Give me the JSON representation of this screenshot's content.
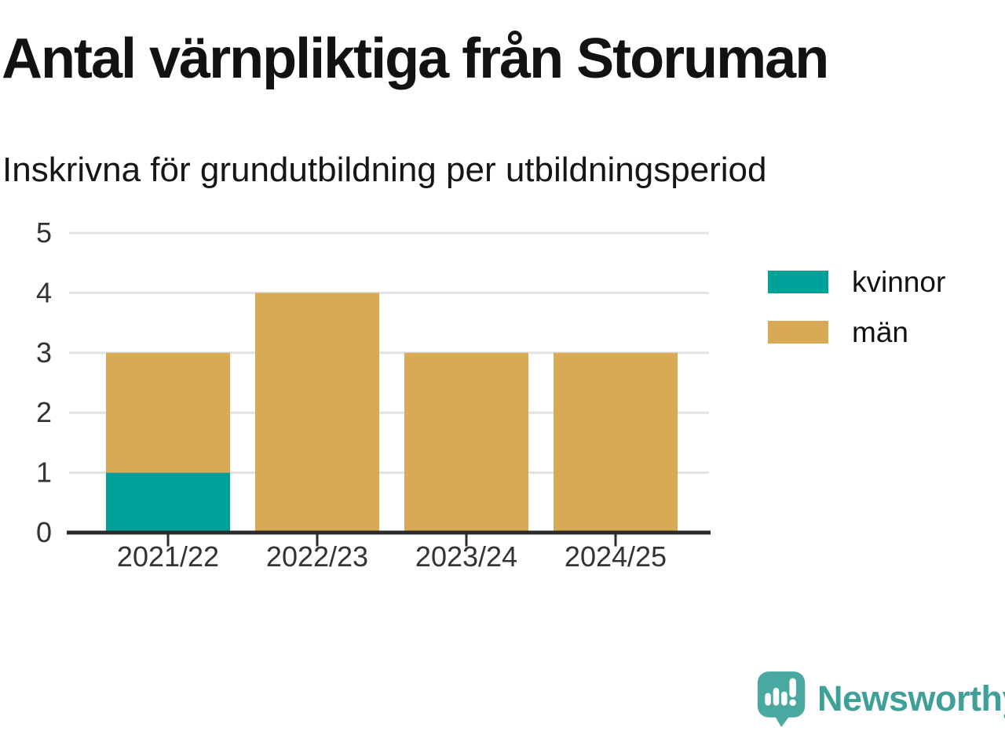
{
  "header": {
    "title": "Antal värnpliktiga från Storuman",
    "subtitle": "Inskrivna för grundutbildning per utbildningsperiod"
  },
  "chart_data": {
    "type": "bar",
    "stacked": true,
    "title": "Antal värnpliktiga från Storuman",
    "subtitle": "Inskrivna för grundutbildning per utbildningsperiod",
    "categories": [
      "2021/22",
      "2022/23",
      "2023/24",
      "2024/25"
    ],
    "series": [
      {
        "name": "kvinnor",
        "color": "#00A19A",
        "values": [
          1,
          0,
          0,
          0
        ]
      },
      {
        "name": "män",
        "color": "#D9AA55",
        "values": [
          2,
          4,
          3,
          3
        ]
      }
    ],
    "xlabel": "",
    "ylabel": "",
    "ylim": [
      0,
      5
    ],
    "yticks": [
      0,
      1,
      2,
      3,
      4,
      5
    ],
    "grid": true,
    "legend_position": "right"
  },
  "colors": {
    "background": "#FFFFFF",
    "title_text": "#121212",
    "axis_text": "#333333",
    "axis_line": "#2B2B2B",
    "gridline": "#E2E2E2",
    "kvinnor": "#00A19A",
    "man": "#D9AA55",
    "logo_teal": "#49A8A0",
    "brand_teal": "#3FA09A"
  },
  "footer": {
    "brand": "Newsworthy"
  }
}
